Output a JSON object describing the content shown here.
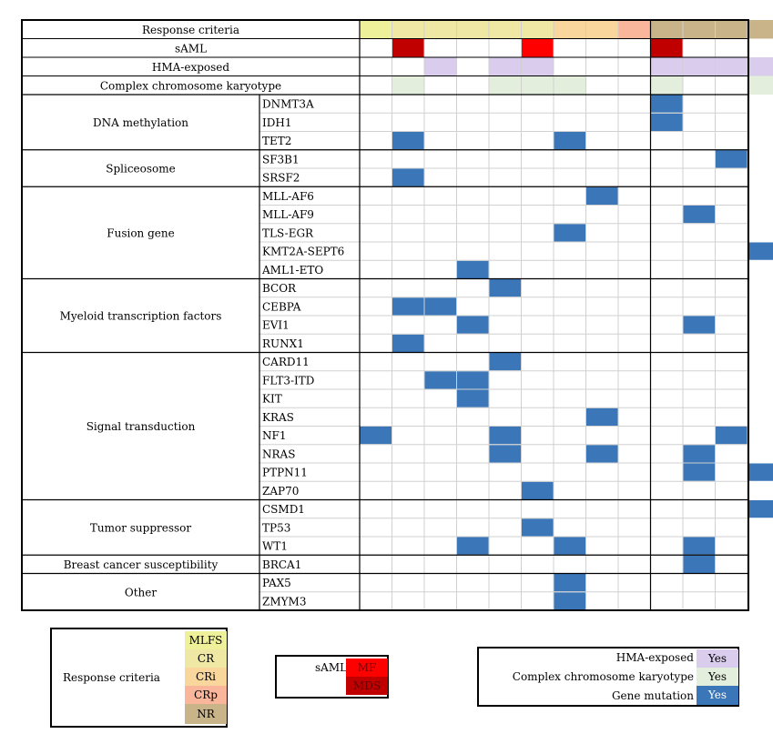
{
  "chart_data": {
    "type": "heatmap",
    "header_rows": [
      {
        "label": "Response criteria"
      },
      {
        "label": "sAML"
      },
      {
        "label": "HMA-exposed"
      },
      {
        "label": "Complex chromosome karyotype"
      }
    ],
    "header_values": {
      "response": [
        "MLFS",
        "CR",
        "CR",
        "CR",
        "CR",
        "CR",
        "CRi",
        "CRi",
        "CRp",
        "NR",
        "NR",
        "NR",
        "NR"
      ],
      "saml": [
        "",
        "MDS",
        "",
        "",
        "",
        "MF",
        "",
        "",
        "",
        "MDS",
        "",
        "",
        ""
      ],
      "hma": [
        "",
        "",
        "Yes",
        "",
        "Yes",
        "Yes",
        "",
        "",
        "",
        "Yes",
        "Yes",
        "Yes",
        "Yes"
      ],
      "complex": [
        "",
        "Yes",
        "",
        "",
        "Yes",
        "Yes",
        "Yes",
        "",
        "",
        "Yes",
        "",
        "",
        "Yes"
      ]
    },
    "groups": [
      {
        "name": "DNA methylation",
        "genes": [
          "DNMT3A",
          "IDH1",
          "TET2"
        ]
      },
      {
        "name": "Spliceosome",
        "genes": [
          "SF3B1",
          "SRSF2"
        ]
      },
      {
        "name": "Fusion gene",
        "genes": [
          "MLL-AF6",
          "MLL-AF9",
          "TLS-EGR",
          "KMT2A-SEPT6",
          "AML1-ETO"
        ]
      },
      {
        "name": "Myeloid transcription factors",
        "genes": [
          "BCOR",
          "CEBPA",
          "EVI1",
          "RUNX1"
        ]
      },
      {
        "name": "Signal transduction",
        "genes": [
          "CARD11",
          "FLT3-ITD",
          "KIT",
          "KRAS",
          "NF1",
          "NRAS",
          "PTPN11",
          "ZAP70"
        ]
      },
      {
        "name": "Tumor suppressor",
        "genes": [
          "CSMD1",
          "TP53",
          "WT1"
        ]
      },
      {
        "name": "Breast cancer susceptibility",
        "genes": [
          "BRCA1"
        ]
      },
      {
        "name": "Other",
        "genes": [
          "PAX5",
          "ZMYM3"
        ]
      }
    ],
    "mutations": {
      "DNMT3A": [
        9
      ],
      "IDH1": [
        9
      ],
      "TET2": [
        1,
        6
      ],
      "SF3B1": [
        11
      ],
      "SRSF2": [
        1
      ],
      "MLL-AF6": [
        7
      ],
      "MLL-AF9": [
        10
      ],
      "TLS-EGR": [
        6
      ],
      "KMT2A-SEPT6": [
        12
      ],
      "AML1-ETO": [
        3
      ],
      "BCOR": [
        4
      ],
      "CEBPA": [
        1,
        2
      ],
      "EVI1": [
        3,
        10
      ],
      "RUNX1": [
        1
      ],
      "CARD11": [
        4
      ],
      "FLT3-ITD": [
        2,
        3
      ],
      "KIT": [
        3
      ],
      "KRAS": [
        7
      ],
      "NF1": [
        0,
        4,
        11
      ],
      "NRAS": [
        4,
        7,
        10
      ],
      "PTPN11": [
        10,
        12
      ],
      "ZAP70": [
        5
      ],
      "CSMD1": [
        12
      ],
      "TP53": [
        5
      ],
      "WT1": [
        3,
        6,
        10
      ],
      "BRCA1": [
        10
      ],
      "PAX5": [
        6
      ],
      "ZMYM3": [
        6
      ]
    },
    "colors": {
      "MLFS": "#eef09a",
      "CR": "#efe7a4",
      "CRi": "#f9d69b",
      "CRp": "#f9b69a",
      "NR": "#c9b48a",
      "MF": "#ff0000",
      "MDS": "#c00000",
      "HMA": "#d9ccec",
      "Complex": "#e3efdc",
      "Mutation": "#3a76b8"
    }
  },
  "legend_response": {
    "title": "Response criteria",
    "items": [
      "MLFS",
      "CR",
      "CRi",
      "CRp",
      "NR"
    ]
  },
  "legend_saml": {
    "title": "sAML",
    "items": [
      "MF",
      "MDS"
    ]
  },
  "legend_other": {
    "items": [
      {
        "label": "HMA-exposed",
        "value": "Yes"
      },
      {
        "label": "Complex chromosome karyotype",
        "value": "Yes"
      },
      {
        "label": "Gene mutation",
        "value": "Yes"
      }
    ]
  }
}
